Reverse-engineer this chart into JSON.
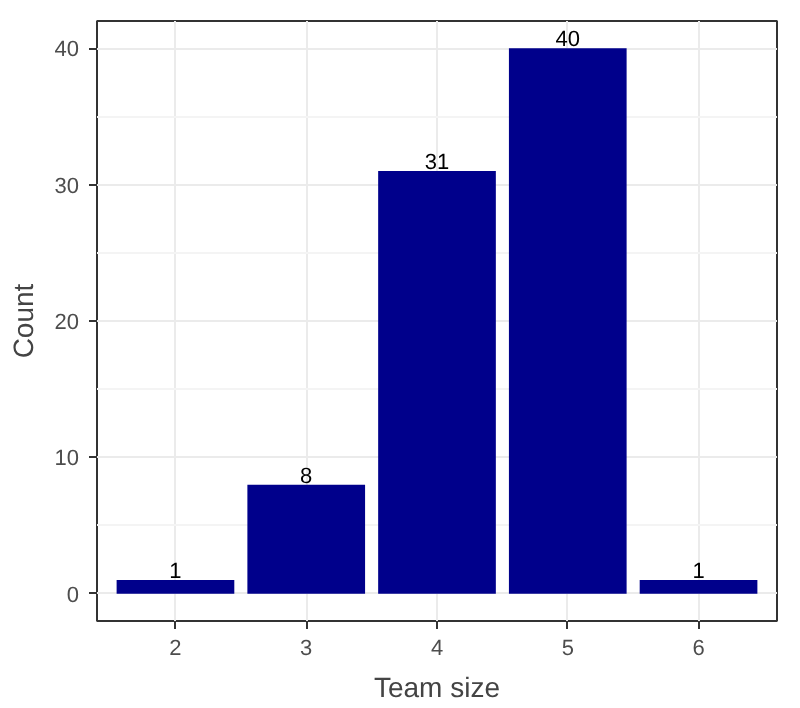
{
  "chart_data": {
    "type": "bar",
    "xlabel": "Team size",
    "ylabel": "Count",
    "categories": [
      "2",
      "3",
      "4",
      "5",
      "6"
    ],
    "values": [
      1,
      8,
      31,
      40,
      1
    ],
    "color": "#00008b",
    "ylim": [
      -2,
      42
    ],
    "yticks": [
      0,
      10,
      20,
      30,
      40
    ],
    "grid": true,
    "data_labels": true
  }
}
